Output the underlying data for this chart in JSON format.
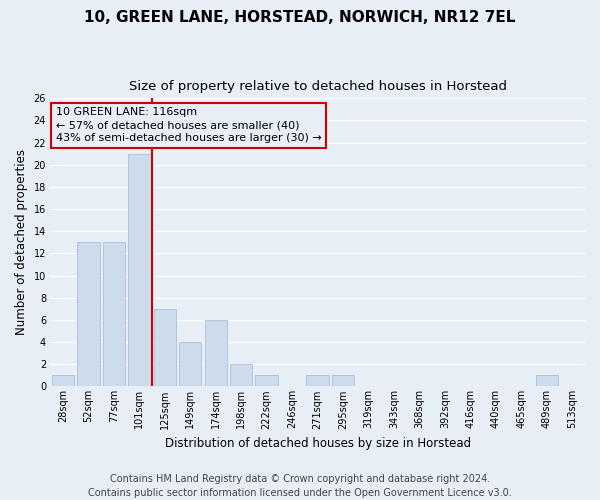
{
  "title": "10, GREEN LANE, HORSTEAD, NORWICH, NR12 7EL",
  "subtitle": "Size of property relative to detached houses in Horstead",
  "xlabel": "Distribution of detached houses by size in Horstead",
  "ylabel": "Number of detached properties",
  "bin_labels": [
    "28sqm",
    "52sqm",
    "77sqm",
    "101sqm",
    "125sqm",
    "149sqm",
    "174sqm",
    "198sqm",
    "222sqm",
    "246sqm",
    "271sqm",
    "295sqm",
    "319sqm",
    "343sqm",
    "368sqm",
    "392sqm",
    "416sqm",
    "440sqm",
    "465sqm",
    "489sqm",
    "513sqm"
  ],
  "bar_values": [
    1,
    13,
    13,
    21,
    7,
    4,
    6,
    2,
    1,
    0,
    1,
    1,
    0,
    0,
    0,
    0,
    0,
    0,
    0,
    1,
    0
  ],
  "bar_color": "#ccdcec",
  "bar_edgecolor": "#aac0d8",
  "vline_color": "#cc0000",
  "annotation_text": "10 GREEN LANE: 116sqm\n← 57% of detached houses are smaller (40)\n43% of semi-detached houses are larger (30) →",
  "annotation_box_edgecolor": "#cc0000",
  "ylim": [
    0,
    26
  ],
  "yticks": [
    0,
    2,
    4,
    6,
    8,
    10,
    12,
    14,
    16,
    18,
    20,
    22,
    24,
    26
  ],
  "plot_bg_color": "#e8eef5",
  "fig_bg_color": "#e8eef5",
  "grid_color": "#ffffff",
  "footer_text": "Contains HM Land Registry data © Crown copyright and database right 2024.\nContains public sector information licensed under the Open Government Licence v3.0.",
  "title_fontsize": 11,
  "subtitle_fontsize": 9.5,
  "xlabel_fontsize": 8.5,
  "ylabel_fontsize": 8.5,
  "annotation_fontsize": 8,
  "footer_fontsize": 7,
  "tick_fontsize": 7
}
